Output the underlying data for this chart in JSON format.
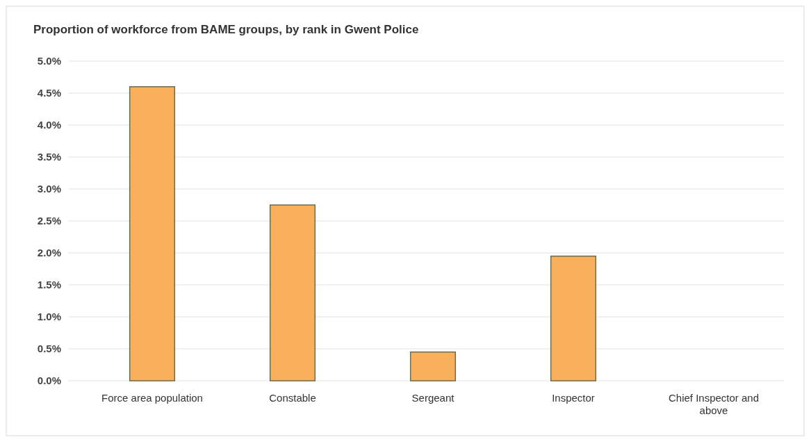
{
  "chart_data": {
    "type": "bar",
    "title": "Proportion of workforce from BAME groups, by rank in Gwent Police",
    "categories": [
      "Force area population",
      "Constable",
      "Sergeant",
      "Inspector",
      "Chief Inspector and above"
    ],
    "values": [
      4.6,
      2.75,
      0.45,
      1.95,
      0
    ],
    "color": "#f9b05c",
    "ylim": [
      0,
      5
    ],
    "yticks": [
      {
        "value": 0,
        "label": "0.0%"
      },
      {
        "value": 0.5,
        "label": "0.5%"
      },
      {
        "value": 1,
        "label": "1.0%"
      },
      {
        "value": 1.5,
        "label": "1.5%"
      },
      {
        "value": 2,
        "label": "2.0%"
      },
      {
        "value": 2.5,
        "label": "2.5%"
      },
      {
        "value": 3,
        "label": "3.0%"
      },
      {
        "value": 3.5,
        "label": "3.5%"
      },
      {
        "value": 4,
        "label": "4.0%"
      },
      {
        "value": 4.5,
        "label": "4.5%"
      },
      {
        "value": 5,
        "label": "5.0%"
      }
    ],
    "grid": "y"
  }
}
